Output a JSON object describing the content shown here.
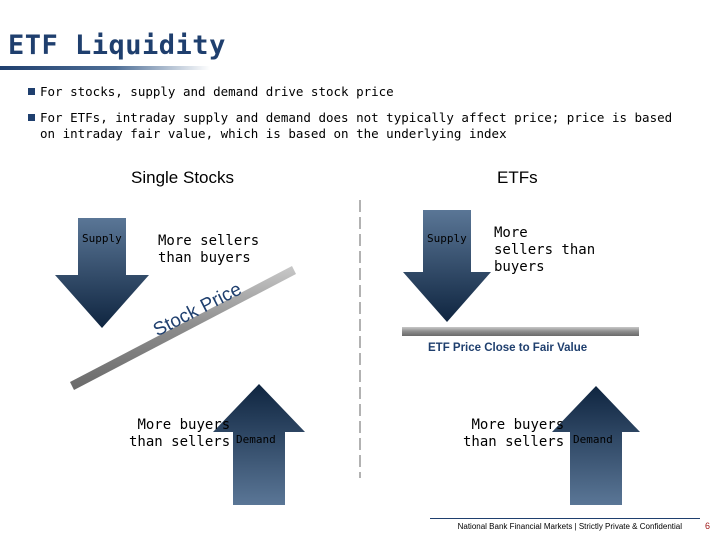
{
  "title": "ETF Liquidity",
  "bullets": [
    "For stocks, supply and demand drive stock price",
    "For ETFs, intraday supply and demand does not typically affect price; price is based on intraday fair value, which is based on the underlying index"
  ],
  "left_panel": {
    "heading": "Single Stocks",
    "supply_label": "Supply",
    "sellers_text": [
      "More sellers",
      "than buyers"
    ],
    "price_label": "Stock Price",
    "buyers_text": [
      "More buyers",
      "than sellers"
    ],
    "demand_label": "Demand"
  },
  "right_panel": {
    "heading": "ETFs",
    "supply_label": "Supply",
    "sellers_text": [
      "More",
      "sellers than",
      "buyers"
    ],
    "price_label": "ETF Price Close to Fair Value",
    "buyers_text": [
      "More buyers",
      "than sellers"
    ],
    "demand_label": "Demand"
  },
  "footer": "National Bank Financial Markets | Strictly Private & Confidential",
  "page_number": "6",
  "colors": {
    "navy": "#1f3f6e",
    "arrow_dark": "#0f2540",
    "arrow_light": "#5a7696",
    "page_number": "#a01818"
  }
}
